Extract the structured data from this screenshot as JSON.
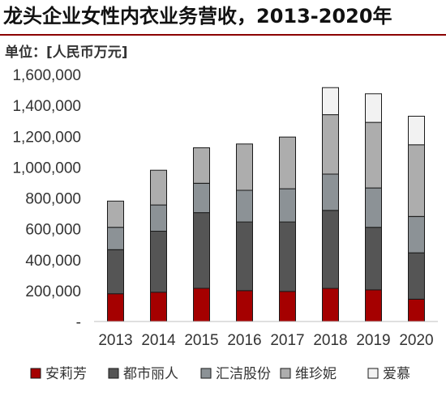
{
  "title": "龙头企业女性内衣业务营收，2013-2020年",
  "unit_label": "单位：[人民币万元]",
  "chart_data": {
    "type": "bar",
    "stacked": true,
    "title": "龙头企业女性内衣业务营收，2013-2020年",
    "ylabel": "单位：[人民币万元]",
    "categories": [
      "2013",
      "2014",
      "2015",
      "2016",
      "2017",
      "2018",
      "2019",
      "2020"
    ],
    "ylim": [
      0,
      1600000
    ],
    "yticks": [
      0,
      200000,
      400000,
      600000,
      800000,
      1000000,
      1200000,
      1400000,
      1600000
    ],
    "ytick_labels": [
      "-",
      "200,000",
      "400,000",
      "600,000",
      "800,000",
      "1,000,000",
      "1,200,000",
      "1,400,000",
      "1,600,000"
    ],
    "grid": false,
    "legend_position": "bottom",
    "series": [
      {
        "name": "安莉芳",
        "color": "#a50000",
        "values": [
          180000,
          190000,
          215000,
          200000,
          195000,
          215000,
          205000,
          145000
        ]
      },
      {
        "name": "都市丽人",
        "color": "#555555",
        "values": [
          285000,
          395000,
          490000,
          445000,
          450000,
          505000,
          405000,
          300000
        ]
      },
      {
        "name": "汇洁股份",
        "color": "#8c9296",
        "values": [
          145000,
          170000,
          190000,
          205000,
          215000,
          235000,
          255000,
          235000
        ]
      },
      {
        "name": "维珍妮",
        "color": "#adadad",
        "values": [
          170000,
          225000,
          230000,
          300000,
          335000,
          385000,
          425000,
          465000
        ]
      },
      {
        "name": "爱慕",
        "color": "#f2f2f2",
        "values": [
          0,
          0,
          0,
          0,
          0,
          175000,
          185000,
          185000
        ]
      }
    ]
  }
}
